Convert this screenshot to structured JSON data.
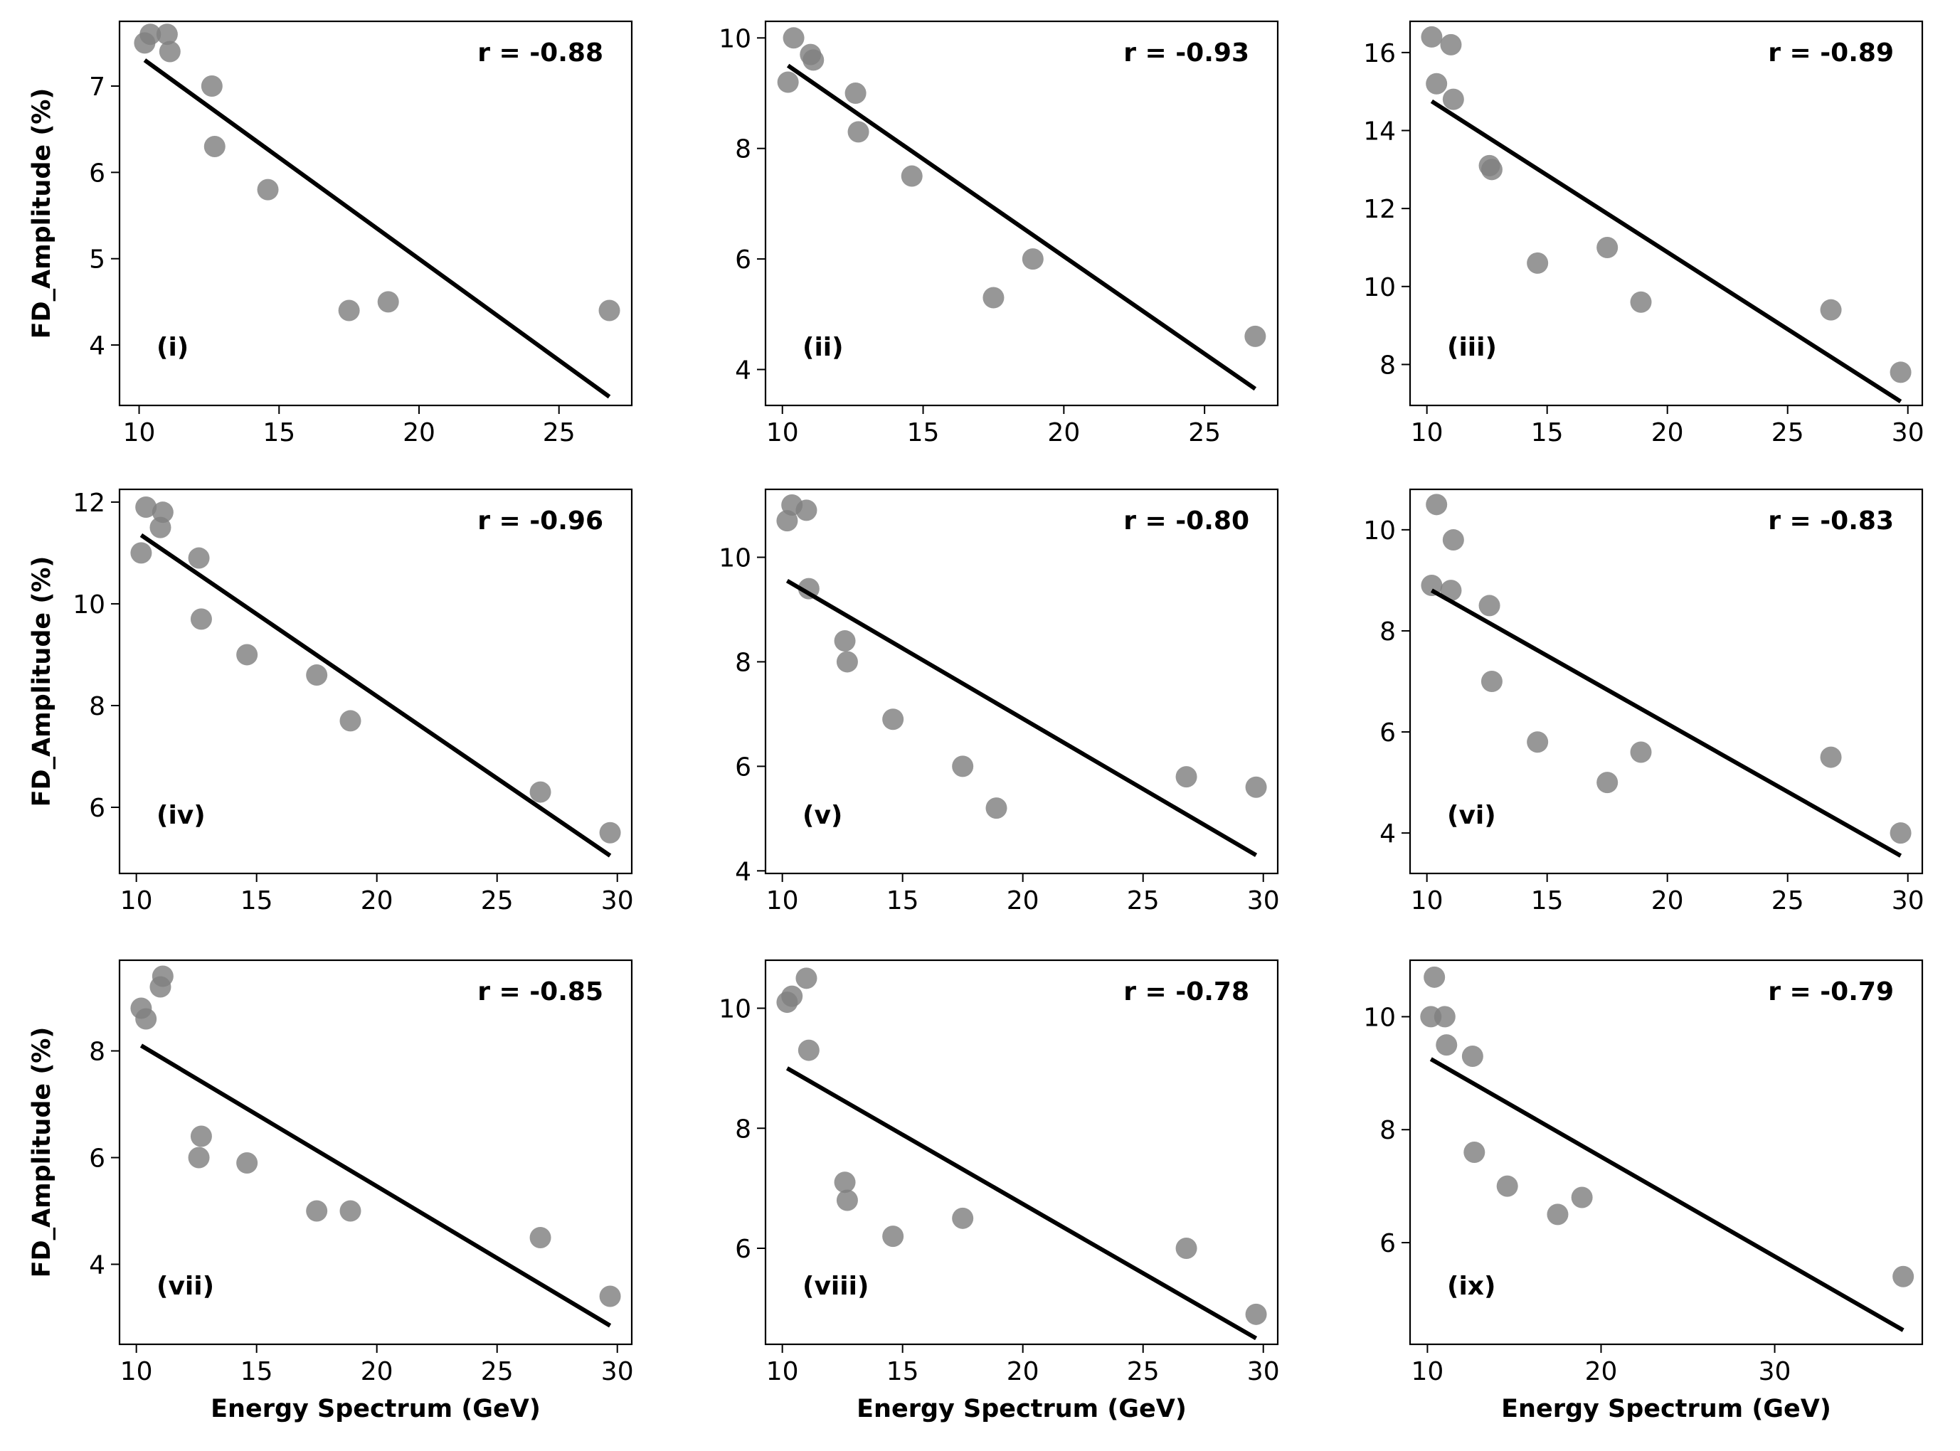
{
  "colors": {
    "point": "#808080",
    "fit_line": "#000000",
    "axis": "#000000"
  },
  "chart_data": [
    {
      "type": "scatter",
      "panel_label": "(i)",
      "annotation": "r = -0.88",
      "x": [
        10.2,
        10.4,
        11.0,
        11.1,
        12.6,
        12.7,
        14.6,
        17.5,
        18.9,
        26.8
      ],
      "y": [
        7.5,
        7.6,
        7.6,
        7.4,
        7.0,
        6.3,
        5.8,
        4.4,
        4.5,
        4.4
      ],
      "fit": {
        "x": [
          10.2,
          26.8
        ],
        "y": [
          7.3,
          3.4
        ]
      },
      "xlim": [
        9.3,
        27.6
      ],
      "ylim": [
        3.3,
        7.75
      ],
      "xticks": [
        10,
        15,
        20,
        25
      ],
      "xtick_labels": [
        "10",
        "15",
        "20",
        "25"
      ],
      "yticks": [
        4,
        5,
        6,
        7
      ],
      "ytick_labels": [
        "4",
        "5",
        "6",
        "7"
      ],
      "xlabel": "",
      "ylabel": "FD_Amplitude (%)"
    },
    {
      "type": "scatter",
      "panel_label": "(ii)",
      "annotation": "r = -0.93",
      "x": [
        10.2,
        10.4,
        11.0,
        11.1,
        12.6,
        12.7,
        14.6,
        17.5,
        18.9,
        26.8
      ],
      "y": [
        9.2,
        10.0,
        9.7,
        9.6,
        9.0,
        8.3,
        7.5,
        5.3,
        6.0,
        4.6
      ],
      "fit": {
        "x": [
          10.2,
          26.8
        ],
        "y": [
          9.5,
          3.65
        ]
      },
      "xlim": [
        9.4,
        27.6
      ],
      "ylim": [
        3.35,
        10.3
      ],
      "xticks": [
        10,
        15,
        20,
        25
      ],
      "xtick_labels": [
        "10",
        "15",
        "20",
        "25"
      ],
      "yticks": [
        4,
        6,
        8,
        10
      ],
      "ytick_labels": [
        "4",
        "6",
        "8",
        "10"
      ],
      "xlabel": "",
      "ylabel": ""
    },
    {
      "type": "scatter",
      "panel_label": "(iii)",
      "annotation": "r = -0.89",
      "x": [
        10.2,
        10.4,
        11.0,
        11.1,
        12.6,
        12.7,
        14.6,
        17.5,
        18.9,
        26.8,
        29.7
      ],
      "y": [
        16.4,
        15.2,
        16.2,
        14.8,
        13.1,
        13.0,
        10.6,
        11.0,
        9.6,
        9.4,
        7.8
      ],
      "fit": {
        "x": [
          10.2,
          29.7
        ],
        "y": [
          14.75,
          7.05
        ]
      },
      "xlim": [
        9.3,
        30.6
      ],
      "ylim": [
        6.95,
        16.8
      ],
      "xticks": [
        10,
        15,
        20,
        25,
        30
      ],
      "xtick_labels": [
        "10",
        "15",
        "20",
        "25",
        "30"
      ],
      "yticks": [
        8,
        10,
        12,
        14,
        16
      ],
      "ytick_labels": [
        "8",
        "10",
        "12",
        "14",
        "16"
      ],
      "xlabel": "",
      "ylabel": ""
    },
    {
      "type": "scatter",
      "panel_label": "(iv)",
      "annotation": "r = -0.96",
      "x": [
        10.2,
        10.4,
        11.0,
        11.1,
        12.6,
        12.7,
        14.6,
        17.5,
        18.9,
        26.8,
        29.7
      ],
      "y": [
        11.0,
        11.9,
        11.5,
        11.8,
        10.9,
        9.7,
        9.0,
        8.6,
        7.7,
        6.3,
        5.5
      ],
      "fit": {
        "x": [
          10.2,
          29.7
        ],
        "y": [
          11.35,
          5.05
        ]
      },
      "xlim": [
        9.3,
        30.6
      ],
      "ylim": [
        4.7,
        12.25
      ],
      "xticks": [
        10,
        15,
        20,
        25,
        30
      ],
      "xtick_labels": [
        "10",
        "15",
        "20",
        "25",
        "30"
      ],
      "yticks": [
        6,
        8,
        10,
        12
      ],
      "ytick_labels": [
        "6",
        "8",
        "10",
        "12"
      ],
      "xlabel": "",
      "ylabel": "FD_Amplitude (%)"
    },
    {
      "type": "scatter",
      "panel_label": "(v)",
      "annotation": "r = -0.80",
      "x": [
        10.2,
        10.4,
        11.0,
        11.1,
        12.6,
        12.7,
        14.6,
        17.5,
        18.9,
        26.8,
        29.7
      ],
      "y": [
        10.7,
        11.0,
        10.9,
        9.4,
        8.4,
        8.0,
        6.9,
        6.0,
        5.2,
        5.8,
        5.6
      ],
      "fit": {
        "x": [
          10.2,
          29.7
        ],
        "y": [
          9.55,
          4.3
        ]
      },
      "xlim": [
        9.3,
        30.6
      ],
      "ylim": [
        3.95,
        11.3
      ],
      "xticks": [
        10,
        15,
        20,
        25,
        30
      ],
      "xtick_labels": [
        "10",
        "15",
        "20",
        "25",
        "30"
      ],
      "yticks": [
        4,
        6,
        8,
        10
      ],
      "ytick_labels": [
        "4",
        "6",
        "8",
        "10"
      ],
      "xlabel": "",
      "ylabel": ""
    },
    {
      "type": "scatter",
      "panel_label": "(vi)",
      "annotation": "r = -0.83",
      "x": [
        10.2,
        10.4,
        11.0,
        11.1,
        12.6,
        12.7,
        14.6,
        17.5,
        18.9,
        26.8,
        29.7
      ],
      "y": [
        8.9,
        10.5,
        8.8,
        9.8,
        8.5,
        7.0,
        5.8,
        5.0,
        5.6,
        5.5,
        4.0
      ],
      "fit": {
        "x": [
          10.2,
          29.7
        ],
        "y": [
          8.8,
          3.55
        ]
      },
      "xlim": [
        9.3,
        30.6
      ],
      "ylim": [
        3.2,
        10.8
      ],
      "xticks": [
        10,
        15,
        20,
        25,
        30
      ],
      "xtick_labels": [
        "10",
        "15",
        "20",
        "25",
        "30"
      ],
      "yticks": [
        4,
        6,
        8,
        10
      ],
      "ytick_labels": [
        "4",
        "6",
        "8",
        "10"
      ],
      "xlabel": "",
      "ylabel": ""
    },
    {
      "type": "scatter",
      "panel_label": "(vii)",
      "annotation": "r = -0.85",
      "x": [
        10.2,
        10.4,
        11.0,
        11.1,
        12.6,
        12.7,
        14.6,
        17.5,
        18.9,
        26.8,
        29.7
      ],
      "y": [
        8.8,
        8.6,
        9.2,
        9.4,
        6.0,
        6.4,
        5.9,
        5.0,
        5.0,
        4.5,
        3.4
      ],
      "fit": {
        "x": [
          10.2,
          29.7
        ],
        "y": [
          8.1,
          2.85
        ]
      },
      "xlim": [
        9.3,
        30.6
      ],
      "ylim": [
        2.5,
        9.7
      ],
      "xticks": [
        10,
        15,
        20,
        25,
        30
      ],
      "xtick_labels": [
        "10",
        "15",
        "20",
        "25",
        "30"
      ],
      "yticks": [
        4,
        6,
        8
      ],
      "ytick_labels": [
        "4",
        "6",
        "8"
      ],
      "xlabel": "Energy Spectrum (GeV)",
      "ylabel": "FD_Amplitude (%)"
    },
    {
      "type": "scatter",
      "panel_label": "(viii)",
      "annotation": "r = -0.78",
      "x": [
        10.2,
        10.4,
        11.0,
        11.1,
        12.6,
        12.7,
        14.6,
        17.5,
        26.8,
        29.7
      ],
      "y": [
        10.1,
        10.2,
        10.5,
        9.3,
        7.1,
        6.8,
        6.2,
        6.5,
        6.0,
        4.9
      ],
      "fit": {
        "x": [
          10.2,
          29.7
        ],
        "y": [
          9.0,
          4.5
        ]
      },
      "xlim": [
        9.3,
        30.6
      ],
      "ylim": [
        4.4,
        10.8
      ],
      "xticks": [
        10,
        15,
        20,
        25,
        30
      ],
      "xtick_labels": [
        "10",
        "15",
        "20",
        "25",
        "30"
      ],
      "yticks": [
        6,
        8,
        10
      ],
      "ytick_labels": [
        "6",
        "8",
        "10"
      ],
      "xlabel": "Energy Spectrum (GeV)",
      "ylabel": ""
    },
    {
      "type": "scatter",
      "panel_label": "(ix)",
      "annotation": "r = -0.79",
      "x": [
        10.2,
        10.4,
        11.0,
        11.1,
        12.6,
        12.7,
        14.6,
        17.5,
        18.9,
        37.4
      ],
      "y": [
        10.0,
        10.7,
        10.0,
        9.5,
        9.3,
        7.6,
        7.0,
        6.5,
        6.8,
        5.4
      ],
      "fit": {
        "x": [
          10.2,
          37.4
        ],
        "y": [
          9.25,
          4.45
        ]
      },
      "xlim": [
        9.0,
        38.5
      ],
      "ylim": [
        4.2,
        11.0
      ],
      "xticks": [
        10,
        20,
        30
      ],
      "xtick_labels": [
        "10",
        "20",
        "30"
      ],
      "yticks": [
        6,
        8,
        10
      ],
      "ytick_labels": [
        "6",
        "8",
        "10"
      ],
      "xlabel": "Energy Spectrum (GeV)",
      "ylabel": ""
    }
  ]
}
